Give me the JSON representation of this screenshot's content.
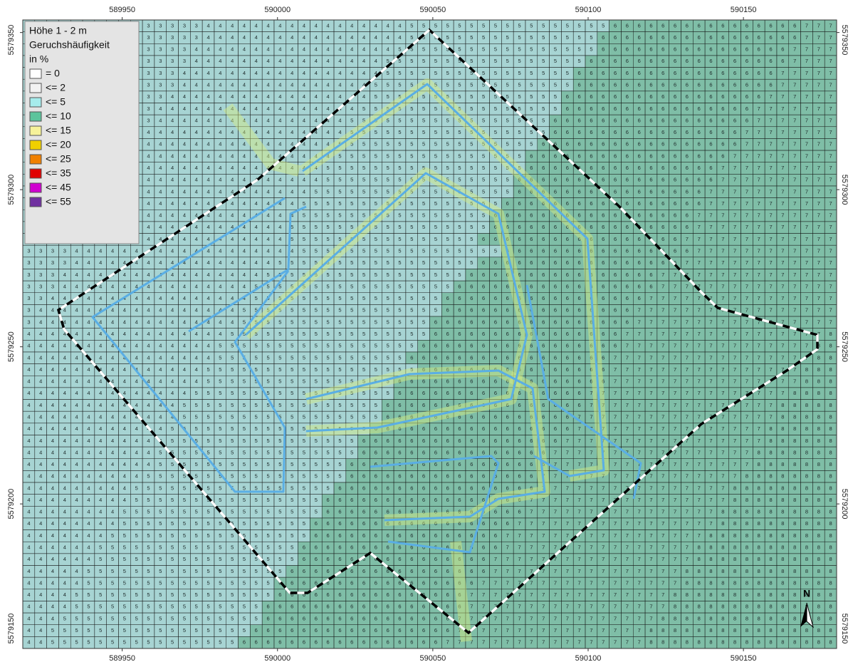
{
  "map": {
    "type": "grid-map",
    "xlim": [
      589918,
      590180
    ],
    "ylim": [
      5579154,
      5579354
    ],
    "xticks": [
      589950,
      590000,
      590050,
      590100,
      590150
    ],
    "yticks": [
      5579350,
      5579300,
      5579250,
      5579200,
      5579150
    ],
    "legend": {
      "title": [
        "Höhe 1 - 2 m",
        "Geruchshäufigkeit",
        "in %"
      ],
      "items": [
        {
          "value": 0,
          "label": "= 0",
          "color": "#ffffff"
        },
        {
          "value": 2,
          "label": "<= 2",
          "color": "#f2f2f2"
        },
        {
          "value": 5,
          "label": "<= 5",
          "color": "#a6ecec"
        },
        {
          "value": 10,
          "label": "<= 10",
          "color": "#5cc49c"
        },
        {
          "value": 15,
          "label": "<= 15",
          "color": "#f6f29a"
        },
        {
          "value": 20,
          "label": "<= 20",
          "color": "#f0d000"
        },
        {
          "value": 25,
          "label": "<= 25",
          "color": "#f08000"
        },
        {
          "value": 35,
          "label": "<= 35",
          "color": "#e00000"
        },
        {
          "value": 45,
          "label": "<= 45",
          "color": "#d000d0"
        },
        {
          "value": 55,
          "label": "<= 55",
          "color": "#7030a0"
        }
      ]
    },
    "north": "N",
    "grid": {
      "rows": [
        "33333333333333344444444444444444555555555555555556666666666666666777",
        "33333333333333344444444444444444555555555555555566666666666666666777",
        "33333333333333444444444444444445555555555555555566666666666666667777",
        "33333333333333444444444444444455555555555555555666666666666666667777",
        "33333333333334444444444444444455555555555555556666666666666666677777",
        "33333333333334444444444444444555555555555555556666666666666666677777",
        "33333333333344444444444444444555555555555555566666666666666666777777",
        "33333333333444444444444444445555555555555555566666666666666667777777",
        "33333333333444444444444444455555555555555555666666666666666667777777",
        "33333333334444444444444444455555555555555555666666666666666677777777",
        "33333333334444444444444444555555555555555556666666666666666677777777",
        "33333333344444444444444444555555555555555566666666666666666777777777",
        "33333333444444444444444445555555555555555566666666666666667777777777",
        "33333333444444444444444445555555555555555666666666666666667777777777",
        "33333334444444444444444455555555555555555666666666666666677777777777",
        "33333334444444444444444555555555555555556666666666666666677777777777",
        "33333344444444444444444555555555555555566666666666666666777777777777",
        "33333344444444444444445555555555555555566666666666666666777777777777",
        "33333444444444444444445555555555555555666666666666666667777777777777",
        "33334444444444444444444555555555555555556666666666666666777777777777",
        "33334444444444444444455555555555555555666666666666666667777777777777",
        "33344444444444444444555555555555555556666666666666666777777777777777",
        "33344444444444444445555555555555555566666666666666666777777777777777",
        "33444444444444444445555555555555555666666666666666667777777777777777",
        "34444444444444444455555555555555555666666666666666677777777777777777",
        "34444444444444444455555555555555556666666666666666677777777777777777",
        "44444444444444444555555555555555556666666666666666777777777777777778",
        "44444444444444445555555555555555566666666666666666777777777777777788",
        "44444444444444445555555555555555666666666666666667777777777777777788",
        "44444444444444455555555555555555566666666666666667777777777777777888",
        "44444444444444455555555555555556666666666666666667777777777777777888",
        "44444444444444555555555555555556666666666666666777777777777777778888",
        "44444444444445555555555555555566666666666666666777777777777777788888",
        "44444444444445555555555555555566666666666666667777777777777777788888",
        "44444444444455555555555555555666666666666666667777777777777777888888",
        "44444444444455555555555555556666666666666666677777777777777777888888",
        "44444444444555555555555555556666666666666666777777777777777778888888",
        "44444444444555555555555555566666666666666666777777777777777778888888",
        "44444444445555555555555555566666666666666667777777777777777788888888",
        "44444444455555555555555555666666666666666667777777777777777888888888",
        "44444444455555555555555556666666666666666677777777777777777888888888",
        "44444444555555555555555556666666666666666677777777777777778888888888",
        "44444444555555555555555566666666666666666777777777777777778888888888",
        "44444445555555555555555566666666666666667777777777777777788888888888",
        "44444455555555555555555666666666666666667777777777777777888888888888",
        "44444455555555555555555666666666666666677777777777777777888888888888",
        "44444555555555555555556666666666666666677777777777777778888888888888",
        "44444555555555555555566666666666666666777777777777777778888888888888",
        "44445555555555555555566666666666666667777777777777777788888888888888",
        "44445555555555555555666666666666666667777777777777777788888888888888",
        "44455555555555555555666666666666666677777777777777777888888888888888",
        "44555555555555555556666666666666666677777777777777778888888888888888",
        "44555555555555555566666666666666666777777777777777778888888888888888"
      ]
    }
  }
}
